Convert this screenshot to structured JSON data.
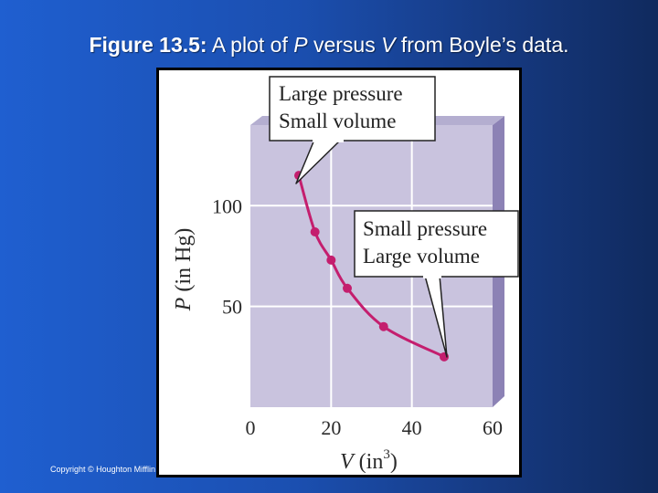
{
  "slide": {
    "title_lead": "Figure 13.5:",
    "title_text_1": " A plot of ",
    "title_var_p": "P",
    "title_text_2": " versus ",
    "title_var_v": "V",
    "title_text_3": " from Boyle’s data.",
    "copyright": "Copyright © Houghton Mifflin"
  },
  "colors": {
    "plot_background": "#c9c3de",
    "plot_side": "#8c82b5",
    "curve": "#c41e6e",
    "grid": "#ffffff"
  },
  "chart_data": {
    "type": "line",
    "x": [
      12,
      16,
      20,
      24,
      33,
      48
    ],
    "y": [
      115,
      87,
      73,
      59,
      40,
      25
    ],
    "xlabel_var": "V",
    "xlabel_unit": "(in",
    "xlabel_exp": "3",
    "xlabel_close": ")",
    "ylabel_var": "P",
    "ylabel_unit": "(in Hg)",
    "xlim": [
      0,
      60
    ],
    "ylim": [
      0,
      140
    ],
    "xticks": [
      0,
      20,
      40,
      60
    ],
    "xtick_labels": [
      "0",
      "20",
      "40",
      "60"
    ],
    "yticks": [
      50,
      100
    ],
    "ytick_labels": [
      "50",
      "100"
    ],
    "grid": true,
    "annotations": [
      {
        "line1": "Large pressure",
        "line2": "Small volume"
      },
      {
        "line1": "Small pressure",
        "line2": "Large volume"
      }
    ]
  }
}
